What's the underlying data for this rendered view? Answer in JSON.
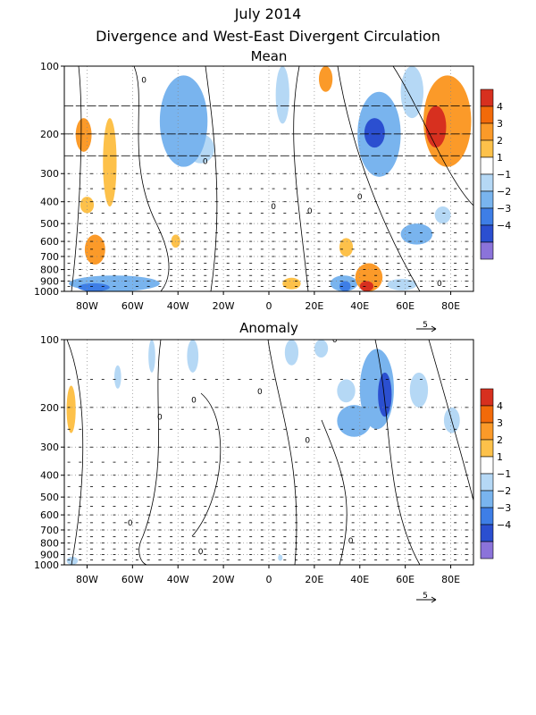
{
  "title": "July 2014",
  "subtitle": "Divergence and West-East Divergent Circulation",
  "colorbar": {
    "labels": [
      "4",
      "3",
      "2",
      "1",
      "−1",
      "−2",
      "−3",
      "−4"
    ],
    "colors": [
      "#d7301f",
      "#f26a0a",
      "#fb9a29",
      "#fdc14a",
      "#ffffff",
      "#b5d8f5",
      "#79b4ee",
      "#3e7ee6",
      "#2b4fd0",
      "#8b73da"
    ]
  },
  "reference_vector": "5",
  "chart_data": [
    {
      "type": "heatmap",
      "title": "Mean",
      "x_ticks": [
        "80W",
        "60W",
        "40W",
        "20W",
        "0",
        "20E",
        "40E",
        "60E",
        "80E"
      ],
      "x_values": [
        -80,
        -60,
        -40,
        -20,
        0,
        20,
        40,
        60,
        80
      ],
      "xlim": [
        -90,
        90
      ],
      "y_ticks": [
        "100",
        "200",
        "300",
        "400",
        "500",
        "600",
        "700",
        "800",
        "900",
        "1000"
      ],
      "y_values": [
        100,
        200,
        300,
        400,
        500,
        600,
        700,
        800,
        900,
        1000
      ],
      "ylim": [
        1000,
        100
      ],
      "y_scale": "log",
      "grid": true,
      "contour_labels": [
        {
          "text": "0",
          "lon": -55,
          "p": 115
        },
        {
          "text": "0",
          "lon": -28,
          "p": 265
        },
        {
          "text": "0",
          "lon": 2,
          "p": 420
        },
        {
          "text": "0",
          "lon": 18,
          "p": 440
        },
        {
          "text": "0",
          "lon": 40,
          "p": 380
        },
        {
          "text": "0",
          "lon": 75,
          "p": 920
        }
      ],
      "features": [
        {
          "lon": [
            68,
            89
          ],
          "p": [
            110,
            280
          ],
          "value": 1.8
        },
        {
          "lon": [
            69,
            78
          ],
          "p": [
            150,
            230
          ],
          "value": 3.2
        },
        {
          "lon": [
            22,
            28
          ],
          "p": [
            100,
            130
          ],
          "value": 1.5
        },
        {
          "lon": [
            -85,
            -78
          ],
          "p": [
            170,
            240
          ],
          "value": 1.5
        },
        {
          "lon": [
            -73,
            -67
          ],
          "p": [
            170,
            420
          ],
          "value": 1.4
        },
        {
          "lon": [
            -83,
            -77
          ],
          "p": [
            380,
            450
          ],
          "value": 1.3
        },
        {
          "lon": [
            -81,
            -72
          ],
          "p": [
            560,
            760
          ],
          "value": 1.6
        },
        {
          "lon": [
            -43,
            -39
          ],
          "p": [
            560,
            640
          ],
          "value": 1.2
        },
        {
          "lon": [
            31,
            37
          ],
          "p": [
            580,
            700
          ],
          "value": 1.4
        },
        {
          "lon": [
            38,
            50
          ],
          "p": [
            750,
            1000
          ],
          "value": 2.0
        },
        {
          "lon": [
            40,
            46
          ],
          "p": [
            900,
            1000
          ],
          "value": 3.4
        },
        {
          "lon": [
            6,
            14
          ],
          "p": [
            870,
            980
          ],
          "value": 1.3
        },
        {
          "lon": [
            -48,
            -27
          ],
          "p": [
            110,
            280
          ],
          "value": -1.5
        },
        {
          "lon": [
            -36,
            -24
          ],
          "p": [
            200,
            270
          ],
          "value": -1.3
        },
        {
          "lon": [
            3,
            9
          ],
          "p": [
            100,
            180
          ],
          "value": -1.3
        },
        {
          "lon": [
            39,
            58
          ],
          "p": [
            130,
            310
          ],
          "value": -2.0
        },
        {
          "lon": [
            42,
            51
          ],
          "p": [
            170,
            230
          ],
          "value": -3.3
        },
        {
          "lon": [
            58,
            68
          ],
          "p": [
            100,
            170
          ],
          "value": -1.2
        },
        {
          "lon": [
            58,
            72
          ],
          "p": [
            500,
            620
          ],
          "value": -1.5
        },
        {
          "lon": [
            73,
            80
          ],
          "p": [
            420,
            500
          ],
          "value": -1.3
        },
        {
          "lon": [
            -88,
            -48
          ],
          "p": [
            850,
            1000
          ],
          "value": -1.7
        },
        {
          "lon": [
            -84,
            -70
          ],
          "p": [
            920,
            1000
          ],
          "value": -2.6
        },
        {
          "lon": [
            27,
            39
          ],
          "p": [
            850,
            1000
          ],
          "value": -1.8
        },
        {
          "lon": [
            31,
            36
          ],
          "p": [
            900,
            1000
          ],
          "value": -2.6
        },
        {
          "lon": [
            52,
            65
          ],
          "p": [
            880,
            990
          ],
          "value": -1.3
        }
      ]
    },
    {
      "type": "heatmap",
      "title": "Anomaly",
      "x_ticks": [
        "80W",
        "60W",
        "40W",
        "20W",
        "0",
        "20E",
        "40E",
        "60E",
        "80E"
      ],
      "x_values": [
        -80,
        -60,
        -40,
        -20,
        0,
        20,
        40,
        60,
        80
      ],
      "xlim": [
        -90,
        90
      ],
      "y_ticks": [
        "100",
        "200",
        "300",
        "400",
        "500",
        "600",
        "700",
        "800",
        "900",
        "1000"
      ],
      "y_values": [
        100,
        200,
        300,
        400,
        500,
        600,
        700,
        800,
        900,
        1000
      ],
      "ylim": [
        1000,
        100
      ],
      "y_scale": "log",
      "grid": true,
      "contour_labels": [
        {
          "text": "0",
          "lon": 29,
          "p": 100
        },
        {
          "text": "0",
          "lon": -33,
          "p": 185
        },
        {
          "text": "0",
          "lon": -48,
          "p": 220
        },
        {
          "text": "0",
          "lon": -4,
          "p": 170
        },
        {
          "text": "0",
          "lon": 17,
          "p": 280
        },
        {
          "text": "0",
          "lon": -61,
          "p": 650
        },
        {
          "text": "0",
          "lon": -30,
          "p": 870
        },
        {
          "text": "0",
          "lon": 36,
          "p": 780
        }
      ],
      "features": [
        {
          "lon": [
            -89,
            -85
          ],
          "p": [
            160,
            260
          ],
          "value": 1.4
        },
        {
          "lon": [
            -53,
            -50
          ],
          "p": [
            100,
            140
          ],
          "value": -1.2
        },
        {
          "lon": [
            -36,
            -31
          ],
          "p": [
            100,
            140
          ],
          "value": -1.2
        },
        {
          "lon": [
            -68,
            -65
          ],
          "p": [
            130,
            165
          ],
          "value": -1.1
        },
        {
          "lon": [
            7,
            13
          ],
          "p": [
            100,
            130
          ],
          "value": -1.1
        },
        {
          "lon": [
            20,
            26
          ],
          "p": [
            100,
            120
          ],
          "value": -1.1
        },
        {
          "lon": [
            40,
            55
          ],
          "p": [
            110,
            250
          ],
          "value": -1.6
        },
        {
          "lon": [
            48,
            54
          ],
          "p": [
            140,
            220
          ],
          "value": -3.1
        },
        {
          "lon": [
            30,
            45
          ],
          "p": [
            195,
            270
          ],
          "value": -1.5
        },
        {
          "lon": [
            30,
            38
          ],
          "p": [
            150,
            190
          ],
          "value": -1.1
        },
        {
          "lon": [
            62,
            70
          ],
          "p": [
            140,
            200
          ],
          "value": -1.2
        },
        {
          "lon": [
            77,
            84
          ],
          "p": [
            200,
            260
          ],
          "value": -1.1
        },
        {
          "lon": [
            4,
            6
          ],
          "p": [
            900,
            960
          ],
          "value": -1.1
        },
        {
          "lon": [
            -89,
            -84
          ],
          "p": [
            920,
            1000
          ],
          "value": -1.3
        }
      ]
    }
  ]
}
